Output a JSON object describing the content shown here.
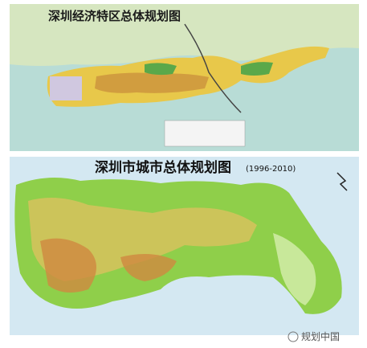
{
  "maps": [
    {
      "title": "深圳经济特区总体规划图"
    },
    {
      "title": "深圳市城市总体规划图",
      "subtitle": "(1996-2010)"
    }
  ],
  "watermark": "规划中国"
}
